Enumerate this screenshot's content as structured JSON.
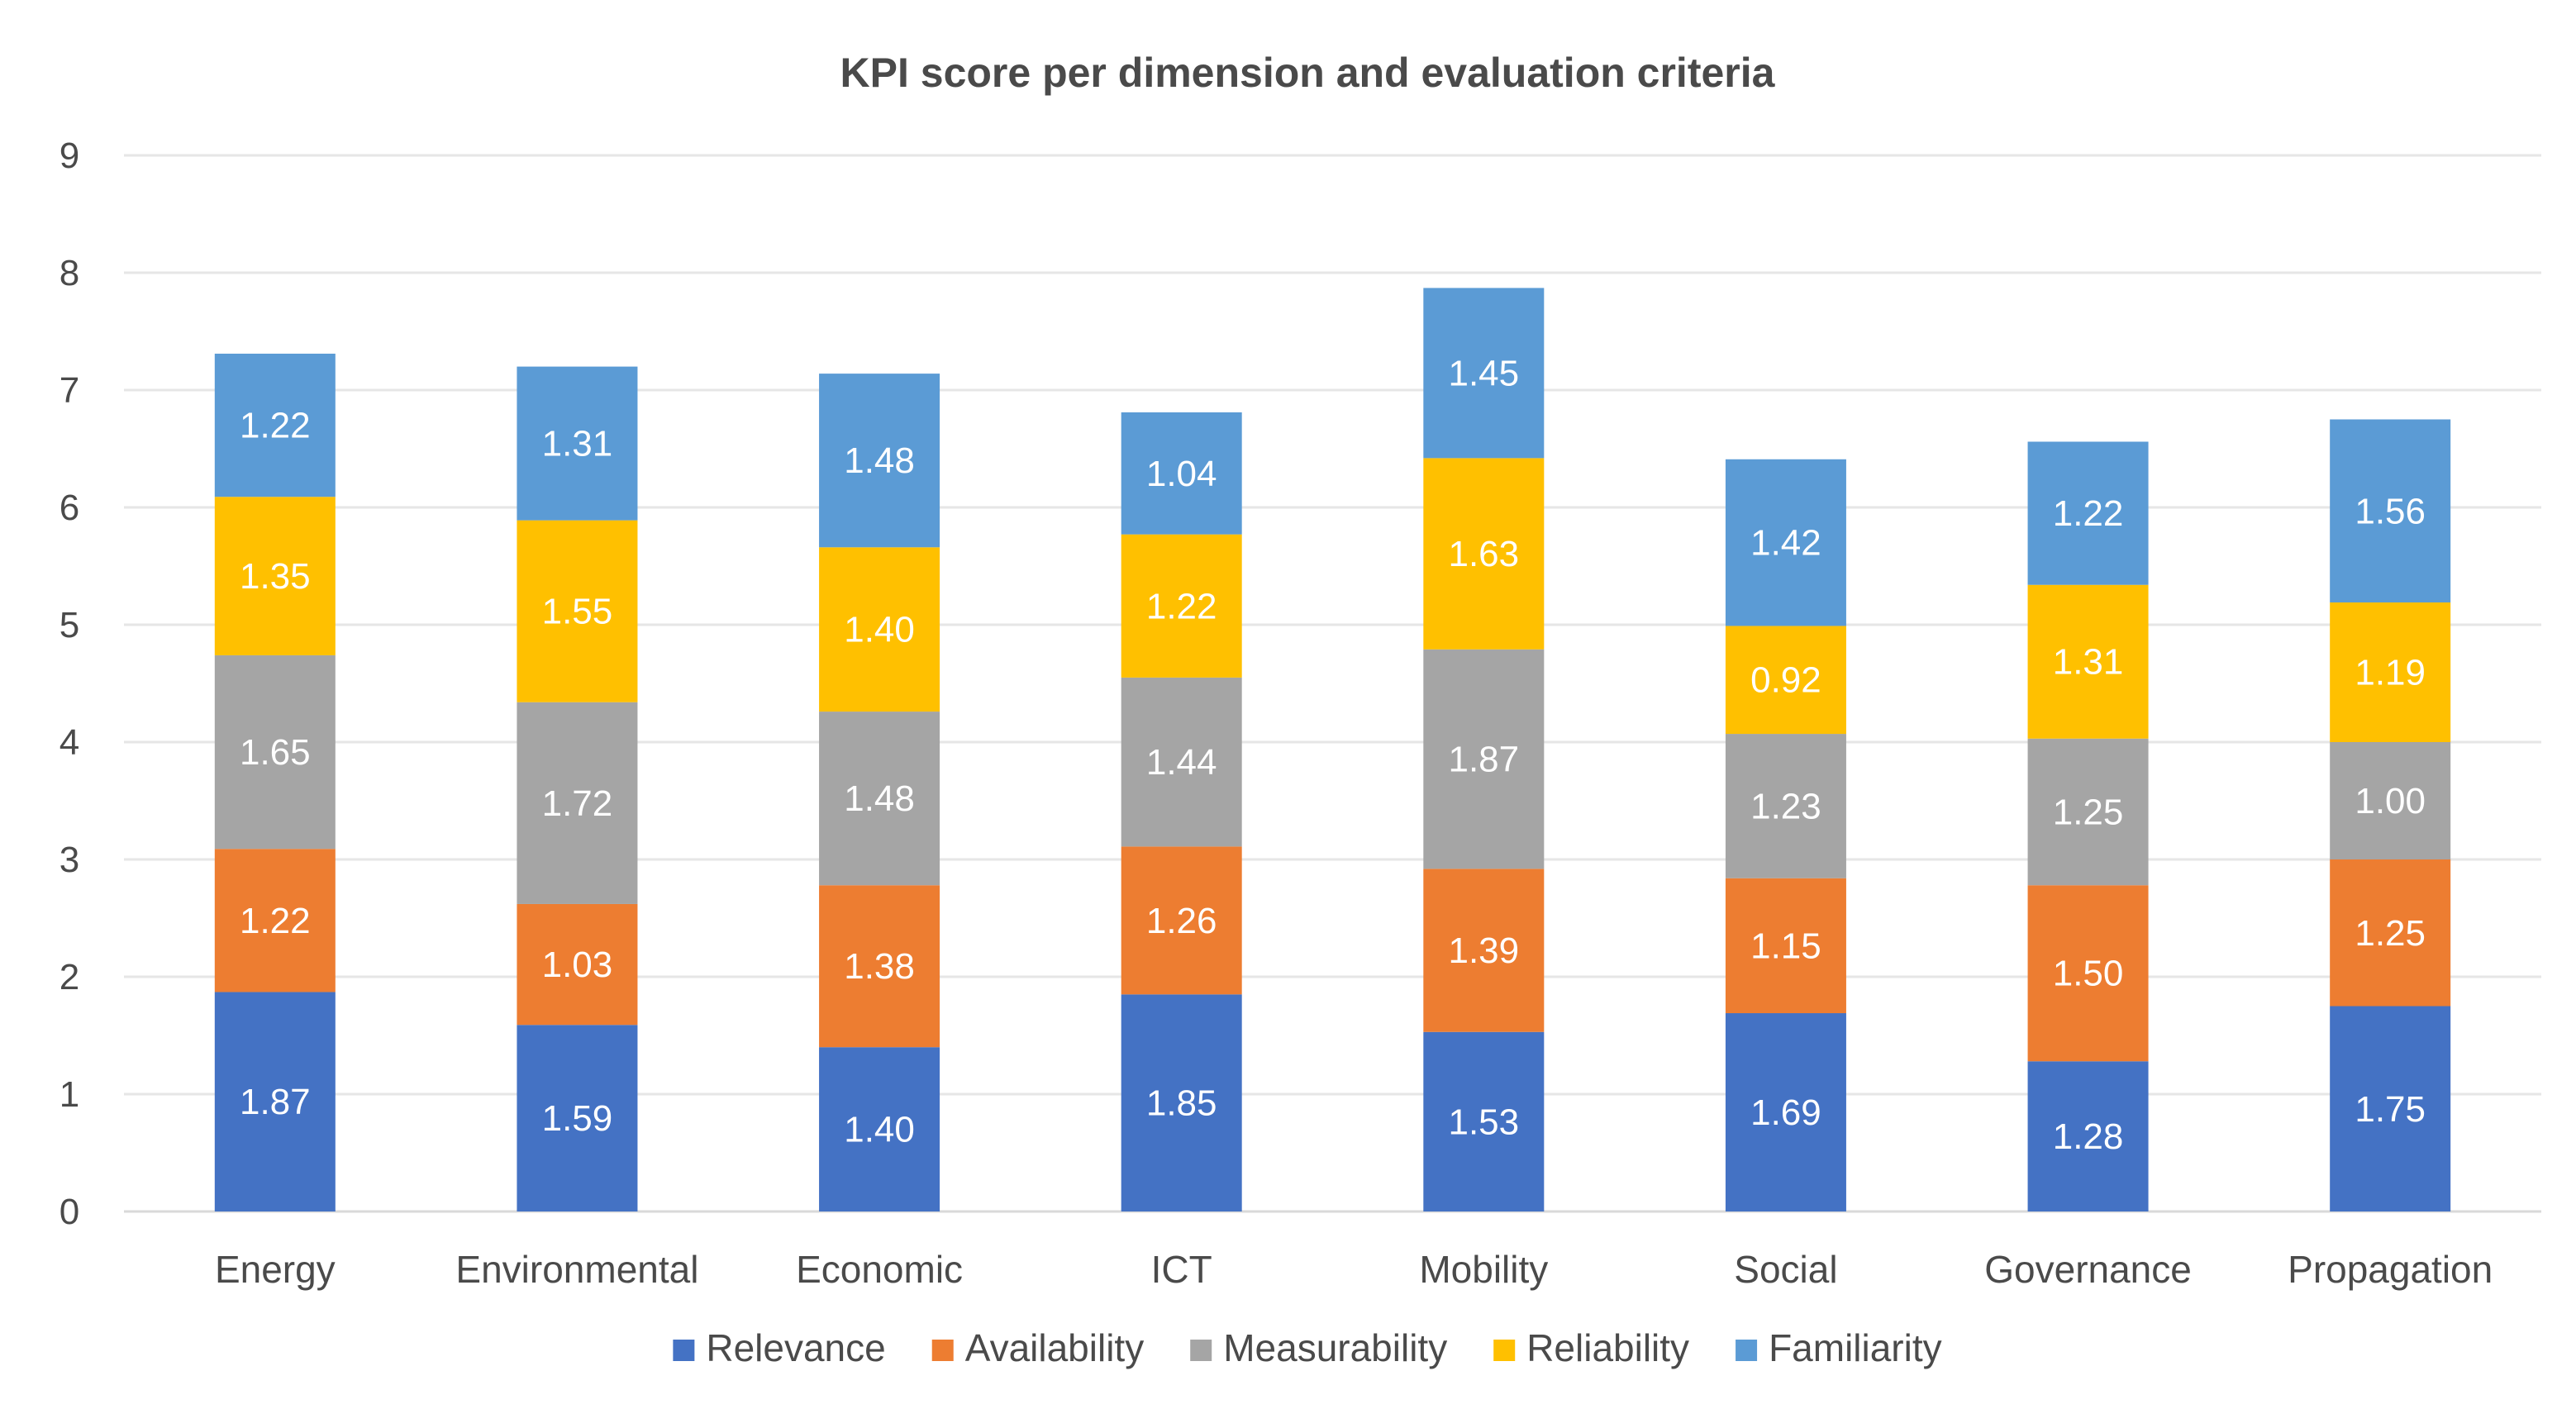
{
  "chart_data": {
    "type": "bar",
    "stacked": true,
    "title": "KPI score per dimension and evaluation criteria",
    "xlabel": "",
    "ylabel": "",
    "ylim": [
      0,
      9
    ],
    "yticks": [
      "0",
      "1",
      "2",
      "3",
      "4",
      "5",
      "6",
      "7",
      "8",
      "9"
    ],
    "grid": true,
    "legend_position": "bottom",
    "categories": [
      "Energy",
      "Environmental",
      "Economic",
      "ICT",
      "Mobility",
      "Social",
      "Governance",
      "Propagation"
    ],
    "series": [
      {
        "name": "Relevance",
        "color": "#4472C4",
        "values": [
          1.87,
          1.59,
          1.4,
          1.85,
          1.53,
          1.69,
          1.28,
          1.75
        ],
        "labels": [
          "1.87",
          "1.59",
          "1.40",
          "1.85",
          "1.53",
          "1.69",
          "1.28",
          "1.75"
        ]
      },
      {
        "name": "Availability",
        "color": "#ED7D31",
        "values": [
          1.22,
          1.03,
          1.38,
          1.26,
          1.39,
          1.15,
          1.5,
          1.25
        ],
        "labels": [
          "1.22",
          "1.03",
          "1.38",
          "1.26",
          "1.39",
          "1.15",
          "1.50",
          "1.25"
        ]
      },
      {
        "name": "Measurability",
        "color": "#A5A5A5",
        "values": [
          1.65,
          1.72,
          1.48,
          1.44,
          1.87,
          1.23,
          1.25,
          1.0
        ],
        "labels": [
          "1.65",
          "1.72",
          "1.48",
          "1.44",
          "1.87",
          "1.23",
          "1.25",
          "1.00"
        ]
      },
      {
        "name": "Reliability",
        "color": "#FFC000",
        "values": [
          1.35,
          1.55,
          1.4,
          1.22,
          1.63,
          0.92,
          1.31,
          1.19
        ],
        "labels": [
          "1.35",
          "1.55",
          "1.40",
          "1.22",
          "1.63",
          "0.92",
          "1.31",
          "1.19"
        ]
      },
      {
        "name": "Familiarity",
        "color": "#5B9BD5",
        "values": [
          1.22,
          1.31,
          1.48,
          1.04,
          1.45,
          1.42,
          1.22,
          1.56
        ],
        "labels": [
          "1.22",
          "1.31",
          "1.48",
          "1.04",
          "1.45",
          "1.42",
          "1.22",
          "1.56"
        ]
      }
    ]
  }
}
